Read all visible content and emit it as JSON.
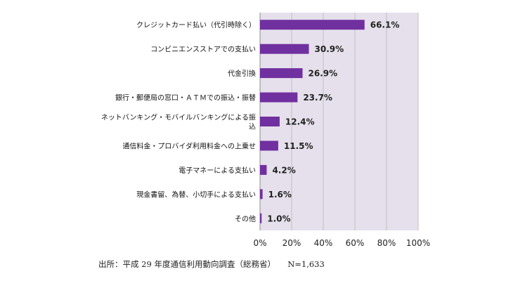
{
  "chart_data": {
    "type": "bar",
    "orientation": "horizontal",
    "categories": [
      "クレジットカード払い（代引時除く）",
      "コンビニエンスストアでの支払い",
      "代金引換",
      "銀行・郵便局の窓口・ＡＴＭでの振込・振替",
      "ネットバンキング・モバイルバンキングによる振込",
      "通信料金・プロバイダ利用料金への上乗せ",
      "電子マネーによる支払い",
      "現金書留、為替、小切手による支払い",
      "その他"
    ],
    "category_label_lines": [
      [
        "クレジットカード払い（代引時除く）"
      ],
      [
        "コンビニエンスストアでの支払い"
      ],
      [
        "代金引換"
      ],
      [
        "銀行・郵便局の窓口・ＡＴＭでの振込・振替"
      ],
      [
        "ネットバンキング・モバイルバンキングによる振",
        "込"
      ],
      [
        "通信料金・プロバイダ利用料金への上乗せ"
      ],
      [
        "電子マネーによる支払い"
      ],
      [
        "現金書留、為替、小切手による支払い"
      ],
      [
        "その他"
      ]
    ],
    "values": [
      66.1,
      30.9,
      26.9,
      23.7,
      12.4,
      11.5,
      4.2,
      1.6,
      1.0
    ],
    "data_labels": [
      "66.1%",
      "30.9%",
      "26.9%",
      "23.7%",
      "12.4%",
      "11.5%",
      "4.2%",
      "1.6%",
      "1.0%"
    ],
    "xlim": [
      0,
      100
    ],
    "x_ticks": [
      "0%",
      "20%",
      "40%",
      "60%",
      "80%",
      "100%"
    ],
    "x_tick_values": [
      0,
      20,
      40,
      60,
      80,
      100
    ],
    "grid": true,
    "bar_color": "#7030a0",
    "plot_background": "#e6e0ec",
    "gridline_color": "#bfbfbf"
  },
  "footer": {
    "source": "出所：平成 29 年度通信利用動向調査（総務省）　　N=1,633"
  }
}
